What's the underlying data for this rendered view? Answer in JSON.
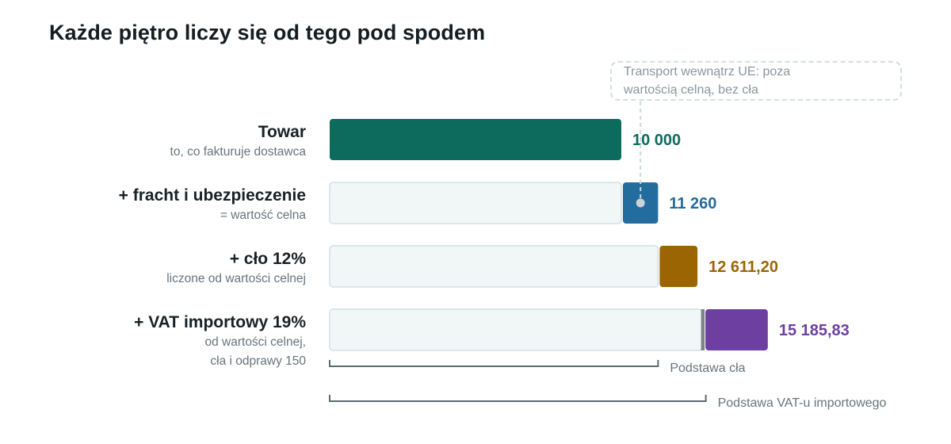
{
  "title": "Każde piętro liczy się od tego pod spodem",
  "annotation": {
    "line1": "Transport wewnątrz UE: poza",
    "line2": "wartością celną, bez cła"
  },
  "rows": [
    {
      "label": "Towar",
      "sub1": "to, co fakturuje dostawca",
      "sub2": ""
    },
    {
      "label": "+ fracht i ubezpieczenie",
      "sub1": "= wartość celna",
      "sub2": ""
    },
    {
      "label": "+ cło 12%",
      "sub1": "liczone od wartości celnej",
      "sub2": ""
    },
    {
      "label": "+ VAT importowy 19%",
      "sub1": "od wartości celnej,",
      "sub2": "cła i odprawy 150"
    }
  ],
  "brackets": {
    "duty_base": "Podstawa cła",
    "vat_base": "Podstawa VAT-u importowego"
  },
  "chart_data": {
    "type": "bar",
    "orientation": "horizontal-stacked-waterfall",
    "categories": [
      "Towar",
      "+ fracht i ubezpieczenie",
      "+ cło 12%",
      "+ VAT importowy 19%"
    ],
    "base_values": [
      0,
      10000,
      11260,
      12761.2
    ],
    "increment_values": [
      10000,
      1260,
      1351.2,
      2424.63
    ],
    "clearance_fee": 150,
    "totals": [
      10000,
      11260,
      12611.2,
      15185.83
    ],
    "total_labels": [
      "10 000",
      "11 260",
      "12 611,20",
      "15 185,83"
    ],
    "colors": [
      "#0d6b5e",
      "#236c9e",
      "#9c6504",
      "#6c3fa0"
    ],
    "base_fill": "#f1f6f7",
    "base_stroke": "#d3e0e3",
    "fee_color": "#7b8489",
    "xlim": [
      0,
      15185.83
    ]
  }
}
